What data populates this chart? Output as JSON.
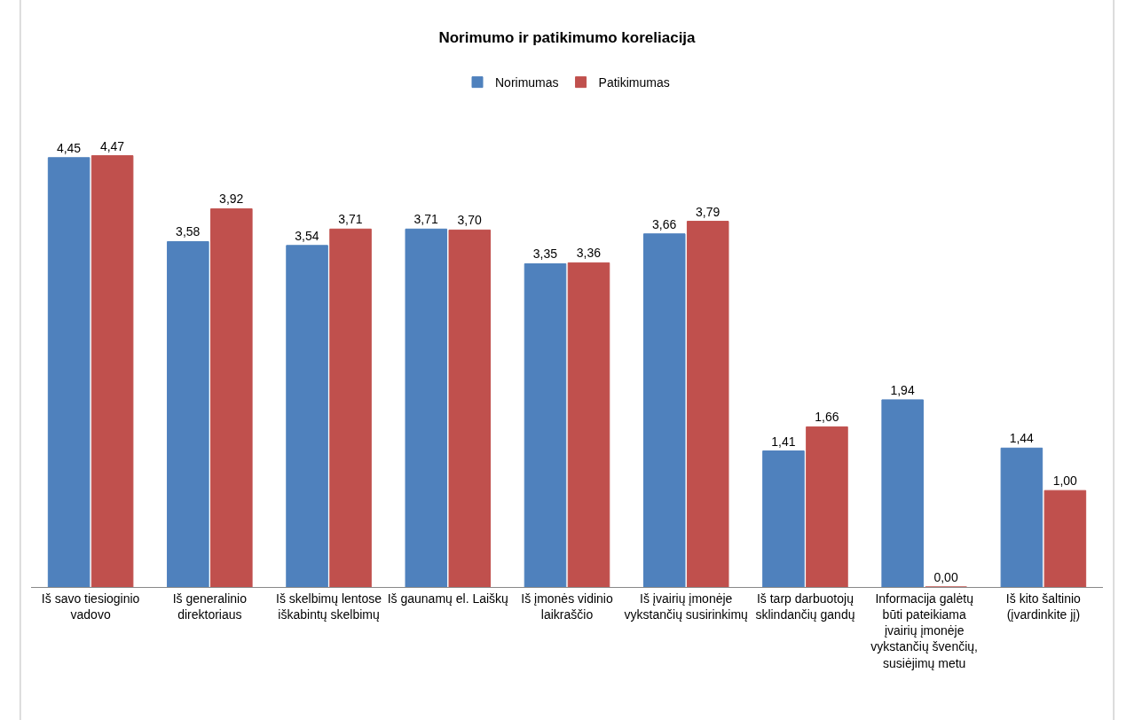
{
  "chart_data": {
    "type": "bar",
    "title": "Norimumo ir patikimumo koreliacija",
    "categories": [
      "Iš savo tiesioginio vadovo",
      "Iš generalinio direktoriaus",
      "Iš skelbimų lentose iškabintų skelbimų",
      "Iš gaunamų el. Laiškų",
      "Iš įmonės vidinio laikraščio",
      "Iš įvairių įmonėje vykstančių susirinkimų",
      "Iš tarp darbuotojų sklindančių gandų",
      "Informacija galėtų būti pateikiama įvairių įmonėje vykstančių švenčių, susiėjimų metu",
      "Iš kito šaltinio (įvardinkite jį)"
    ],
    "series": [
      {
        "name": "Norimumas",
        "color": "#4f81bd",
        "values": [
          4.45,
          3.58,
          3.54,
          3.71,
          3.35,
          3.66,
          1.41,
          1.94,
          1.44
        ],
        "value_labels": [
          "4,45",
          "3,58",
          "3,54",
          "3,71",
          "3,35",
          "3,66",
          "1,41",
          "1,94",
          "1,44"
        ]
      },
      {
        "name": "Patikimumas",
        "color": "#c0504d",
        "values": [
          4.47,
          3.92,
          3.71,
          3.7,
          3.36,
          3.79,
          1.66,
          0.0,
          1.0
        ],
        "value_labels": [
          "4,47",
          "3,92",
          "3,71",
          "3,70",
          "3,36",
          "3,79",
          "1,66",
          "0,00",
          "1,00"
        ]
      }
    ],
    "legend": "top"
  }
}
